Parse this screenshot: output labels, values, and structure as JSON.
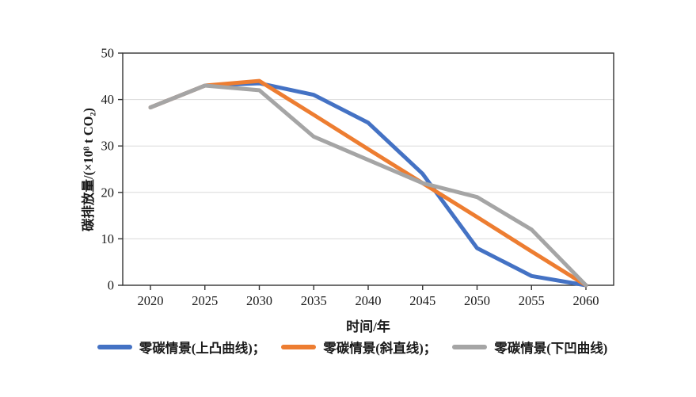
{
  "figure": {
    "background": "#ffffff"
  },
  "style": {
    "axis_color": "#333333",
    "gridline_color": "#d9d9d9",
    "text_color": "#1a1a1a",
    "tick_font_size": 16.5,
    "series_line_width": 5
  },
  "legend": {
    "items": [
      {
        "label": "零碳情景(上凸曲线)；",
        "color": "#4472C4"
      },
      {
        "label": "零碳情景(斜直线)；",
        "color": "#ED7D31"
      },
      {
        "label": "零碳情景(下凹曲线)",
        "color": "#A5A5A5"
      }
    ]
  },
  "chart_data": {
    "type": "line",
    "title": "",
    "xlabel": "时间/年",
    "ylabel": "碳排放量/(×10⁸ t CO₂)",
    "x": [
      2020,
      2025,
      2030,
      2035,
      2040,
      2045,
      2050,
      2055,
      2060
    ],
    "ylim": [
      0,
      50
    ],
    "yticks": [
      0,
      10,
      20,
      30,
      40,
      50
    ],
    "grid": "horizontal-only",
    "legend_position": "bottom",
    "series": [
      {
        "name": "零碳情景(上凸曲线)",
        "color": "#4472C4",
        "values": [
          38.3,
          43,
          43.5,
          41,
          35,
          24,
          8,
          2,
          0
        ]
      },
      {
        "name": "零碳情景(斜直线)",
        "color": "#ED7D31",
        "values": [
          38.3,
          43,
          44,
          36.7,
          29.3,
          22,
          14.7,
          7.3,
          0
        ]
      },
      {
        "name": "零碳情景(下凹曲线)",
        "color": "#A5A5A5",
        "values": [
          38.3,
          43,
          42,
          32,
          27,
          22,
          19,
          12,
          0
        ]
      }
    ]
  }
}
